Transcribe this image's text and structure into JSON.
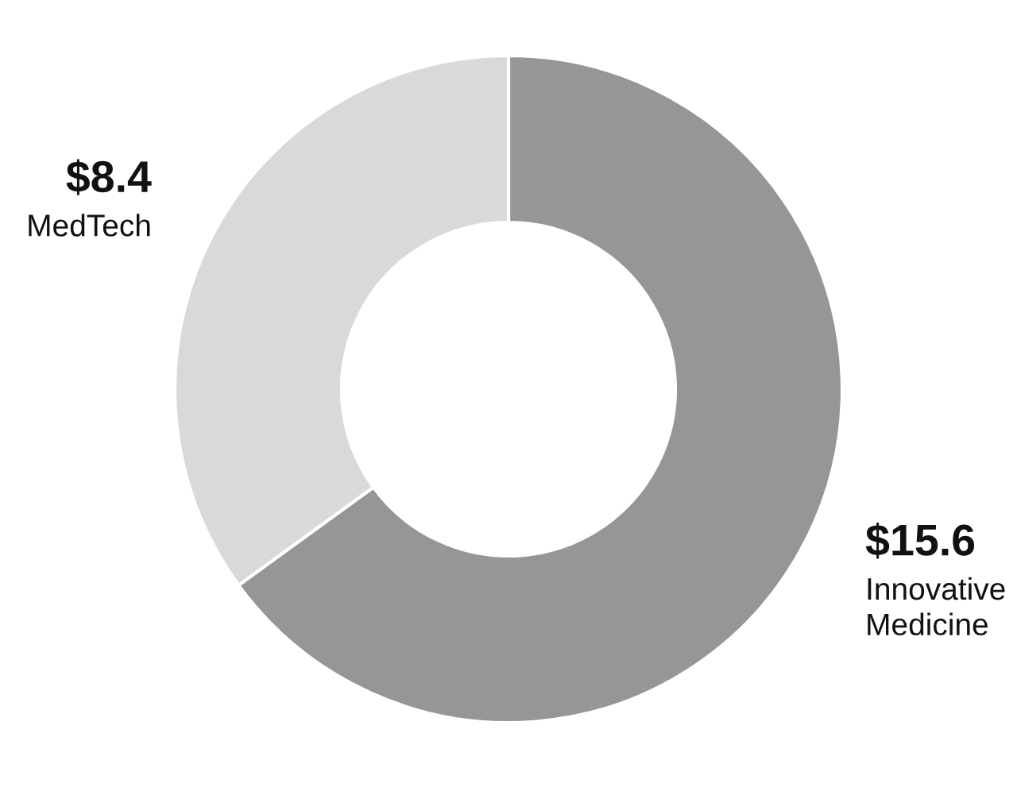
{
  "chart_data": {
    "type": "donut",
    "categories": [
      "Innovative Medicine",
      "MedTech"
    ],
    "values": [
      15.6,
      8.4
    ],
    "colors": [
      "#969696",
      "#d9d9d9"
    ],
    "value_labels": [
      "$15.6",
      "$8.4"
    ]
  }
}
